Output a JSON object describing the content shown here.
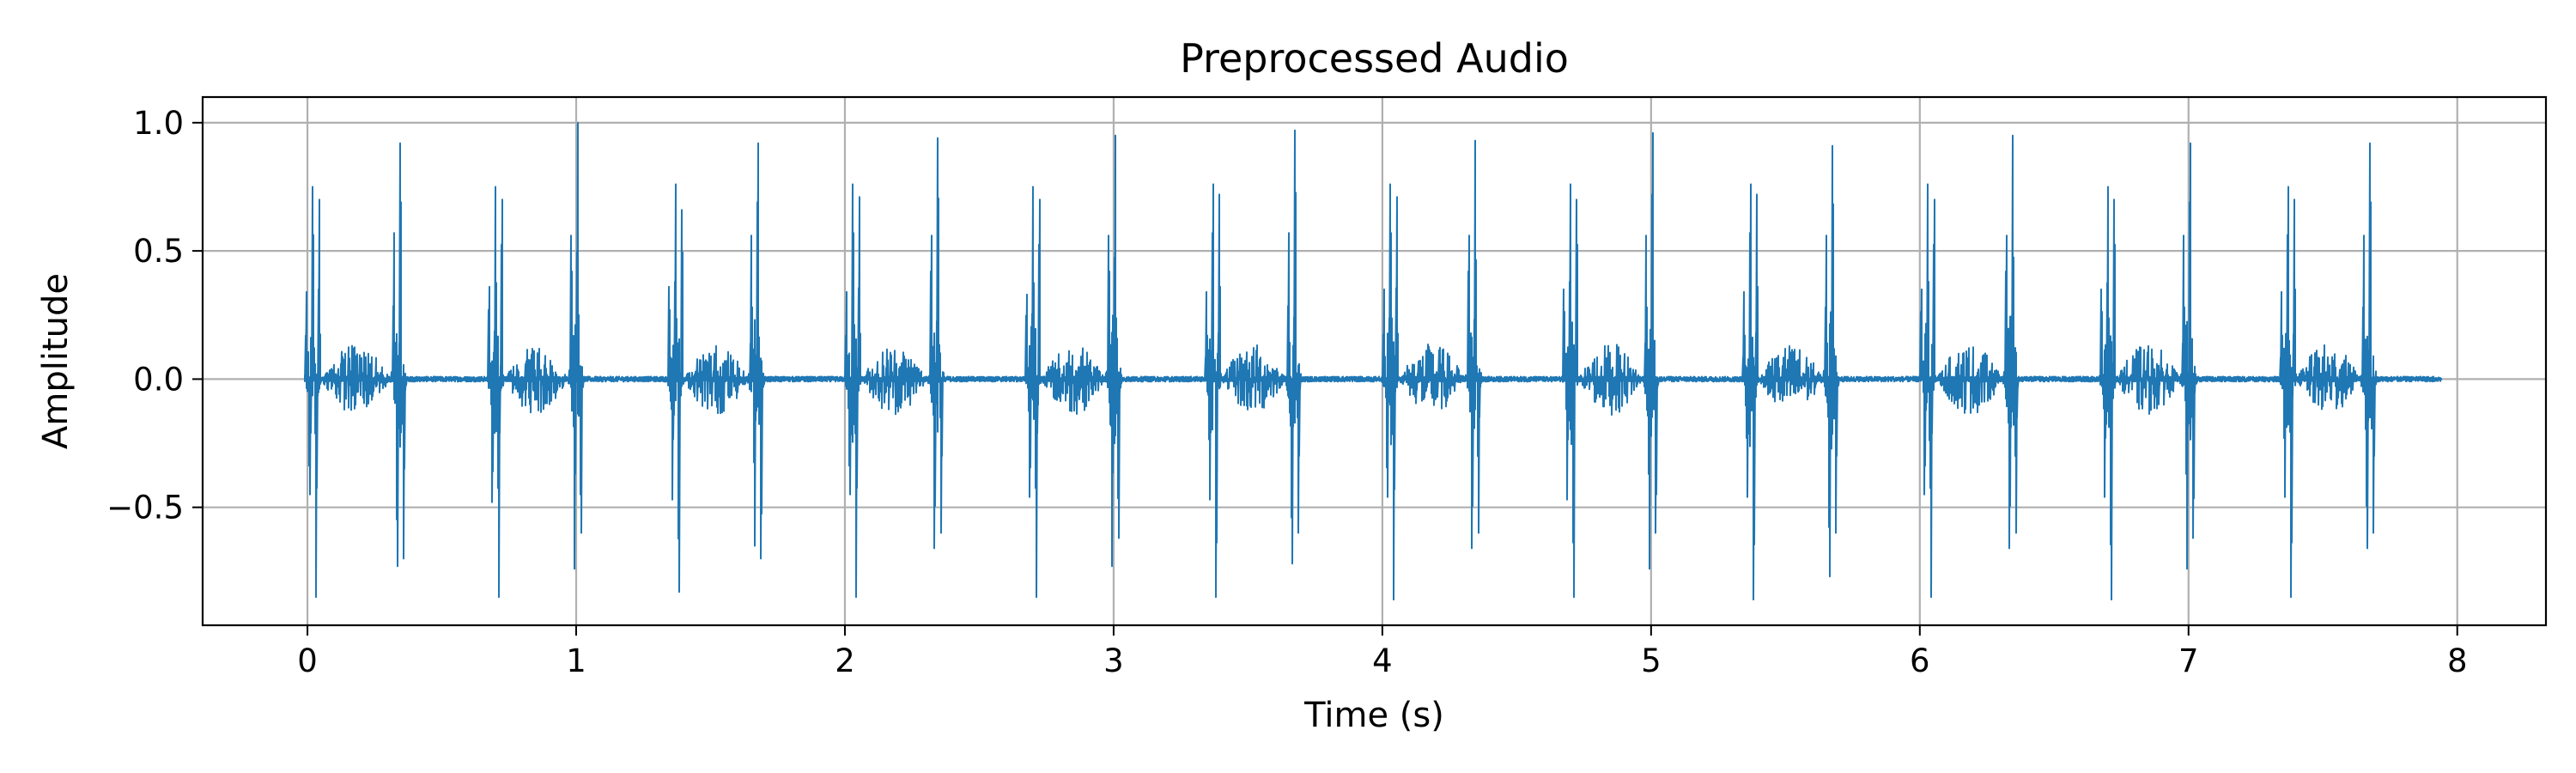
{
  "chart_data": {
    "type": "line",
    "title": "Preprocessed Audio",
    "xlabel": "Time (s)",
    "ylabel": "Amplitude",
    "xlim": [
      -0.39,
      8.33
    ],
    "ylim": [
      -0.96,
      1.1
    ],
    "x_ticks": [
      0,
      1,
      2,
      3,
      4,
      5,
      6,
      7,
      8
    ],
    "x_tick_labels": [
      "0",
      "1",
      "2",
      "3",
      "4",
      "5",
      "6",
      "7",
      "8"
    ],
    "y_ticks": [
      -0.5,
      0.0,
      0.5,
      1.0
    ],
    "y_tick_labels": [
      "−0.5",
      "0.0",
      "0.5",
      "1.0"
    ],
    "grid": true,
    "series_color": "#1f77b4",
    "duration": 7.94,
    "beats": [
      {
        "t": 0.02,
        "peaks": [
          0.34,
          -0.45,
          0.75,
          -0.85,
          0.7
        ]
      },
      {
        "t": 0.34,
        "peaks": [
          0.57,
          -0.73,
          0.92,
          -0.7
        ]
      },
      {
        "t": 0.7,
        "peaks": [
          0.36,
          -0.48,
          0.75,
          -0.85,
          0.7
        ]
      },
      {
        "t": 1.0,
        "peaks": [
          0.56,
          -0.74,
          1.0,
          -0.6
        ]
      },
      {
        "t": 1.37,
        "peaks": [
          0.36,
          -0.47,
          0.76,
          -0.83,
          0.66
        ]
      },
      {
        "t": 1.67,
        "peaks": [
          0.56,
          -0.65,
          0.92,
          -0.7
        ]
      },
      {
        "t": 2.03,
        "peaks": [
          0.34,
          -0.45,
          0.76,
          -0.85,
          0.71
        ]
      },
      {
        "t": 2.34,
        "peaks": [
          0.56,
          -0.66,
          0.94,
          -0.6
        ]
      },
      {
        "t": 2.7,
        "peaks": [
          0.33,
          -0.46,
          0.75,
          -0.85,
          0.7
        ]
      },
      {
        "t": 3.0,
        "peaks": [
          0.56,
          -0.73,
          0.95,
          -0.62
        ]
      },
      {
        "t": 3.37,
        "peaks": [
          0.34,
          -0.47,
          0.76,
          -0.85,
          0.72
        ]
      },
      {
        "t": 3.67,
        "peaks": [
          0.57,
          -0.72,
          0.97,
          -0.6
        ]
      },
      {
        "t": 4.03,
        "peaks": [
          0.35,
          -0.46,
          0.76,
          -0.86,
          0.71
        ]
      },
      {
        "t": 4.34,
        "peaks": [
          0.56,
          -0.66,
          0.93,
          -0.6
        ]
      },
      {
        "t": 4.7,
        "peaks": [
          0.35,
          -0.47,
          0.76,
          -0.85,
          0.7
        ]
      },
      {
        "t": 5.0,
        "peaks": [
          0.56,
          -0.74,
          0.96,
          -0.6
        ]
      },
      {
        "t": 5.37,
        "peaks": [
          0.34,
          -0.46,
          0.76,
          -0.86,
          0.72
        ]
      },
      {
        "t": 5.67,
        "peaks": [
          0.56,
          -0.77,
          0.91,
          -0.6
        ]
      },
      {
        "t": 6.03,
        "peaks": [
          0.35,
          -0.45,
          0.76,
          -0.85,
          0.7
        ]
      },
      {
        "t": 6.34,
        "peaks": [
          0.56,
          -0.66,
          0.95,
          -0.6
        ]
      },
      {
        "t": 6.7,
        "peaks": [
          0.35,
          -0.46,
          0.75,
          -0.86,
          0.7
        ]
      },
      {
        "t": 7.0,
        "peaks": [
          0.56,
          -0.74,
          0.92,
          -0.62
        ]
      },
      {
        "t": 7.37,
        "peaks": [
          0.34,
          -0.46,
          0.75,
          -0.85,
          0.7
        ]
      },
      {
        "t": 7.67,
        "peaks": [
          0.56,
          -0.66,
          0.92,
          -0.6
        ]
      }
    ]
  }
}
